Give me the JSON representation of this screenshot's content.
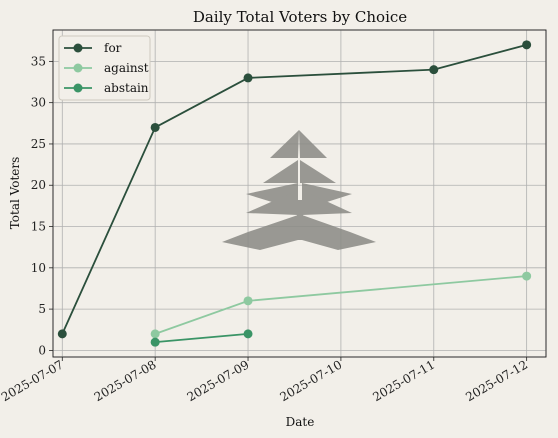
{
  "chart_data": {
    "type": "line",
    "title": "Daily Total Voters by Choice",
    "xlabel": "Date",
    "ylabel": "Total Voters",
    "x_ticks": [
      "2025-07-07",
      "2025-07-08",
      "2025-07-09",
      "2025-07-10",
      "2025-07-11",
      "2025-07-12"
    ],
    "y_ticks": [
      0,
      5,
      10,
      15,
      20,
      25,
      30,
      35
    ],
    "xlim": [
      "2025-07-06T21:36",
      "2025-07-12T05:00"
    ],
    "ylim": [
      -0.8,
      38.8
    ],
    "grid": true,
    "legend_position": "top-left",
    "series": [
      {
        "name": "for",
        "color": "#2b4f3c",
        "points": [
          {
            "x": "2025-07-07",
            "y": 2
          },
          {
            "x": "2025-07-08",
            "y": 27
          },
          {
            "x": "2025-07-09",
            "y": 33
          },
          {
            "x": "2025-07-11",
            "y": 34
          },
          {
            "x": "2025-07-12",
            "y": 37
          }
        ]
      },
      {
        "name": "against",
        "color": "#8ec9a0",
        "points": [
          {
            "x": "2025-07-08",
            "y": 2
          },
          {
            "x": "2025-07-09",
            "y": 6
          },
          {
            "x": "2025-07-12",
            "y": 9
          }
        ]
      },
      {
        "name": "abstain",
        "color": "#3a9466",
        "points": [
          {
            "x": "2025-07-08",
            "y": 1
          },
          {
            "x": "2025-07-09",
            "y": 2
          }
        ]
      }
    ],
    "watermark_icon": "tree-watermark-icon"
  }
}
